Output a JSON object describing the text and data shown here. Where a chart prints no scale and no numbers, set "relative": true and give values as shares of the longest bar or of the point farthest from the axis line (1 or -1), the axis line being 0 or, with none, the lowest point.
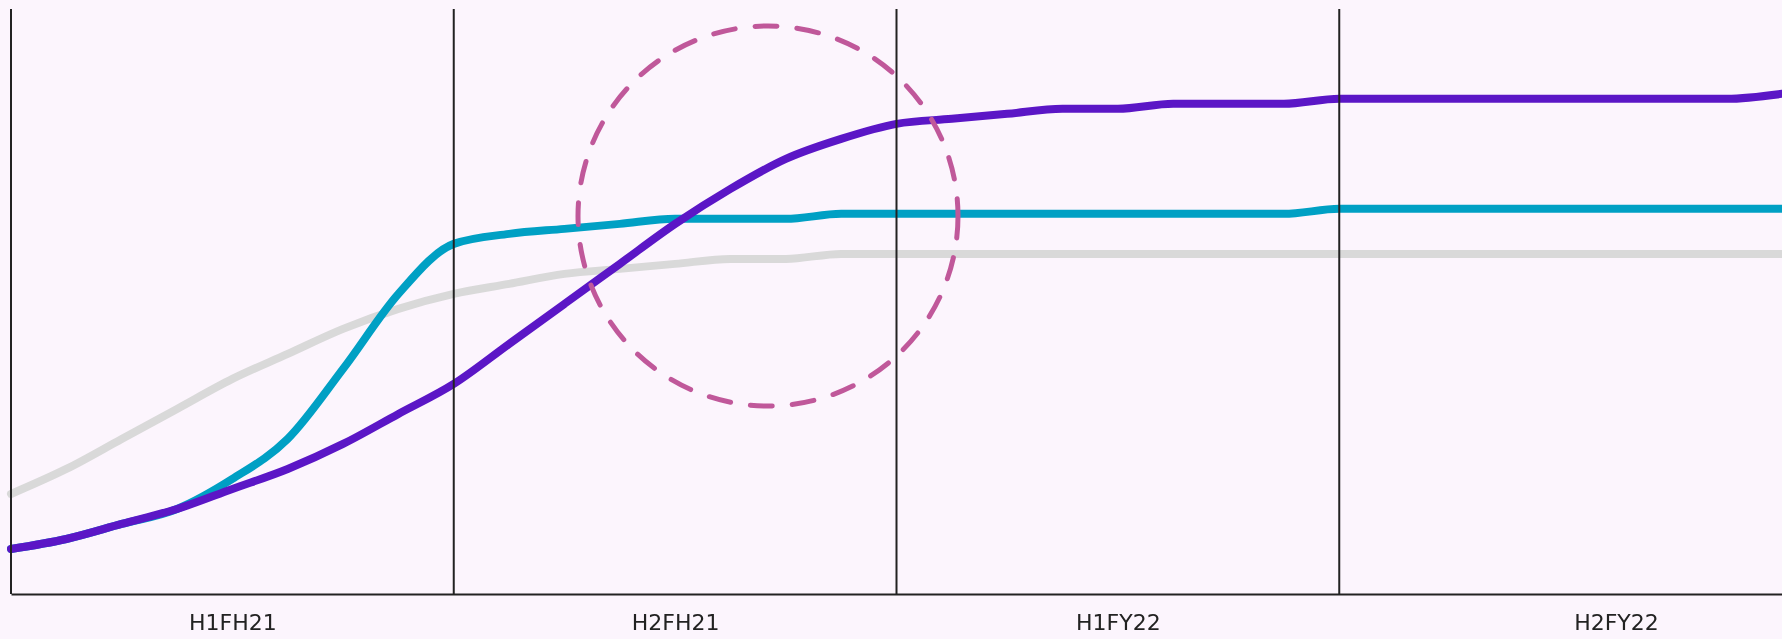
{
  "chart_data": {
    "type": "line",
    "relative": true,
    "categories": [
      null,
      null,
      null,
      null,
      "H1FH21",
      null,
      null,
      null,
      null,
      null,
      null,
      null,
      "H2FH21",
      null,
      null,
      null,
      null,
      null,
      null,
      null,
      "H1FY22",
      null,
      null,
      null,
      null,
      null,
      null,
      null,
      null,
      "H2FY22",
      null,
      null,
      null
    ],
    "grid": "x",
    "marker": "none",
    "line_style": "solid",
    "series": [
      {
        "color": "#d9d9d9",
        "values": [
          0.2,
          0.25,
          0.31,
          0.37,
          0.43,
          0.48,
          0.53,
          0.57,
          0.6,
          0.62,
          0.64,
          0.65,
          0.66,
          0.67,
          0.67,
          0.68,
          0.68,
          0.68,
          0.68,
          0.68,
          0.68,
          0.68,
          0.68,
          0.68,
          0.68,
          0.68,
          0.68,
          0.68,
          0.68,
          0.68,
          0.68,
          0.68,
          0.68
        ]
      },
      {
        "color": "#00a0c4",
        "values": [
          0.09,
          0.11,
          0.14,
          0.17,
          0.23,
          0.31,
          0.45,
          0.6,
          0.7,
          0.72,
          0.73,
          0.74,
          0.75,
          0.75,
          0.75,
          0.76,
          0.76,
          0.76,
          0.76,
          0.76,
          0.76,
          0.76,
          0.76,
          0.76,
          0.77,
          0.77,
          0.77,
          0.77,
          0.77,
          0.77,
          0.77,
          0.77,
          0.77
        ]
      },
      {
        "color": "#5b16c6",
        "values": [
          0.09,
          0.11,
          0.14,
          0.17,
          0.21,
          0.25,
          0.3,
          0.36,
          0.42,
          0.5,
          0.58,
          0.66,
          0.74,
          0.81,
          0.87,
          0.91,
          0.94,
          0.95,
          0.96,
          0.97,
          0.97,
          0.98,
          0.98,
          0.98,
          0.99,
          0.99,
          0.99,
          0.99,
          0.99,
          0.99,
          0.99,
          0.99,
          1
        ]
      }
    ]
  }
}
